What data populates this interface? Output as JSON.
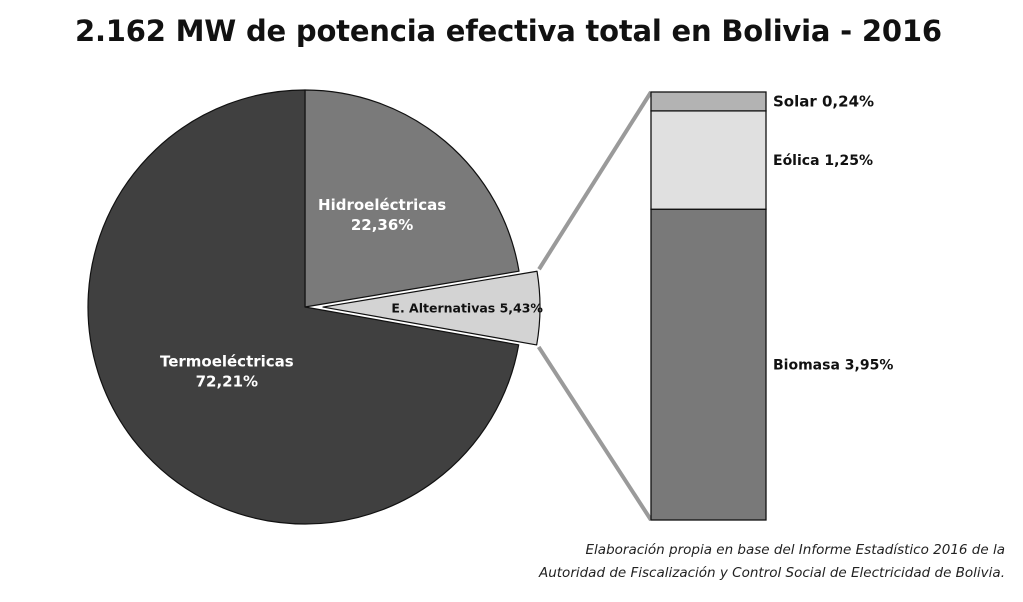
{
  "chart_data": {
    "type": "pie",
    "title": "2.162 MW de potencia efectiva total en Bolivia - 2016",
    "slices": [
      {
        "label": "Termoeléctricas",
        "value": 72.21,
        "value_label": "72,21%",
        "color": "#404040"
      },
      {
        "label": "Hidroeléctricas",
        "value": 22.36,
        "value_label": "22,36%",
        "color": "#7a7a7a"
      },
      {
        "label": "E. Alternativas 5,43%",
        "value": 5.43,
        "color": "#d3d3d3"
      }
    ],
    "breakdown": {
      "type": "stacked-bar",
      "of": "E. Alternativas",
      "segments": [
        {
          "label": "Biomasa 3,95%",
          "value": 3.95,
          "color": "#797979"
        },
        {
          "label": "Eólica 1,25%",
          "value": 1.25,
          "color": "#e0e0e0"
        },
        {
          "label": "Solar 0,24%",
          "value": 0.24,
          "color": "#b3b3b3"
        }
      ]
    }
  },
  "source": {
    "line1": "Elaboración propia en base del Informe Estadístico 2016 de la",
    "line2": "Autoridad de Fiscalización y Control Social de Electricidad de Bolivia."
  }
}
